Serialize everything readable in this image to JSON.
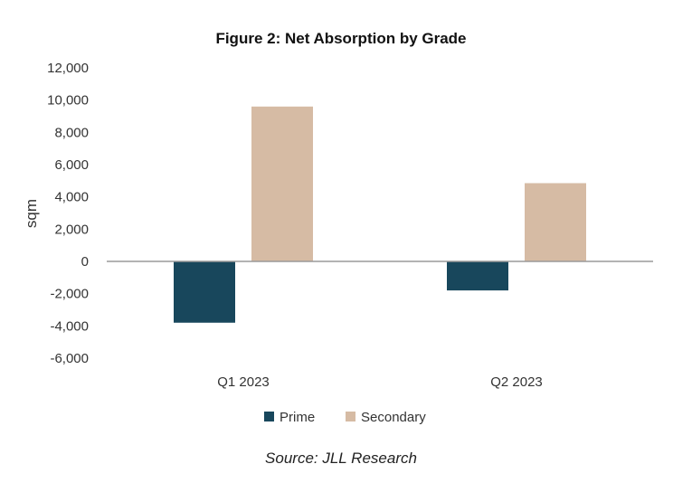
{
  "chart_data": {
    "type": "bar",
    "title": "Figure 2: Net Absorption by Grade",
    "ylabel": "sqm",
    "xlabel": "",
    "categories": [
      "Q1 2023",
      "Q2 2023"
    ],
    "series": [
      {
        "name": "Prime",
        "color": "#18475c",
        "values": [
          -3800,
          -1800
        ]
      },
      {
        "name": "Secondary",
        "color": "#d6bba4",
        "values": [
          9600,
          4850
        ]
      }
    ],
    "ylim": [
      -6000,
      12000
    ],
    "yticks": [
      12000,
      10000,
      8000,
      6000,
      4000,
      2000,
      0,
      -2000,
      -4000,
      -6000
    ],
    "ytick_labels": [
      "12,000",
      "10,000",
      "8,000",
      "6,000",
      "4,000",
      "2,000",
      "0",
      "-2,000",
      "-4,000",
      "-6,000"
    ],
    "grid": false,
    "legend_position": "bottom",
    "source": "Source: JLL Research"
  }
}
